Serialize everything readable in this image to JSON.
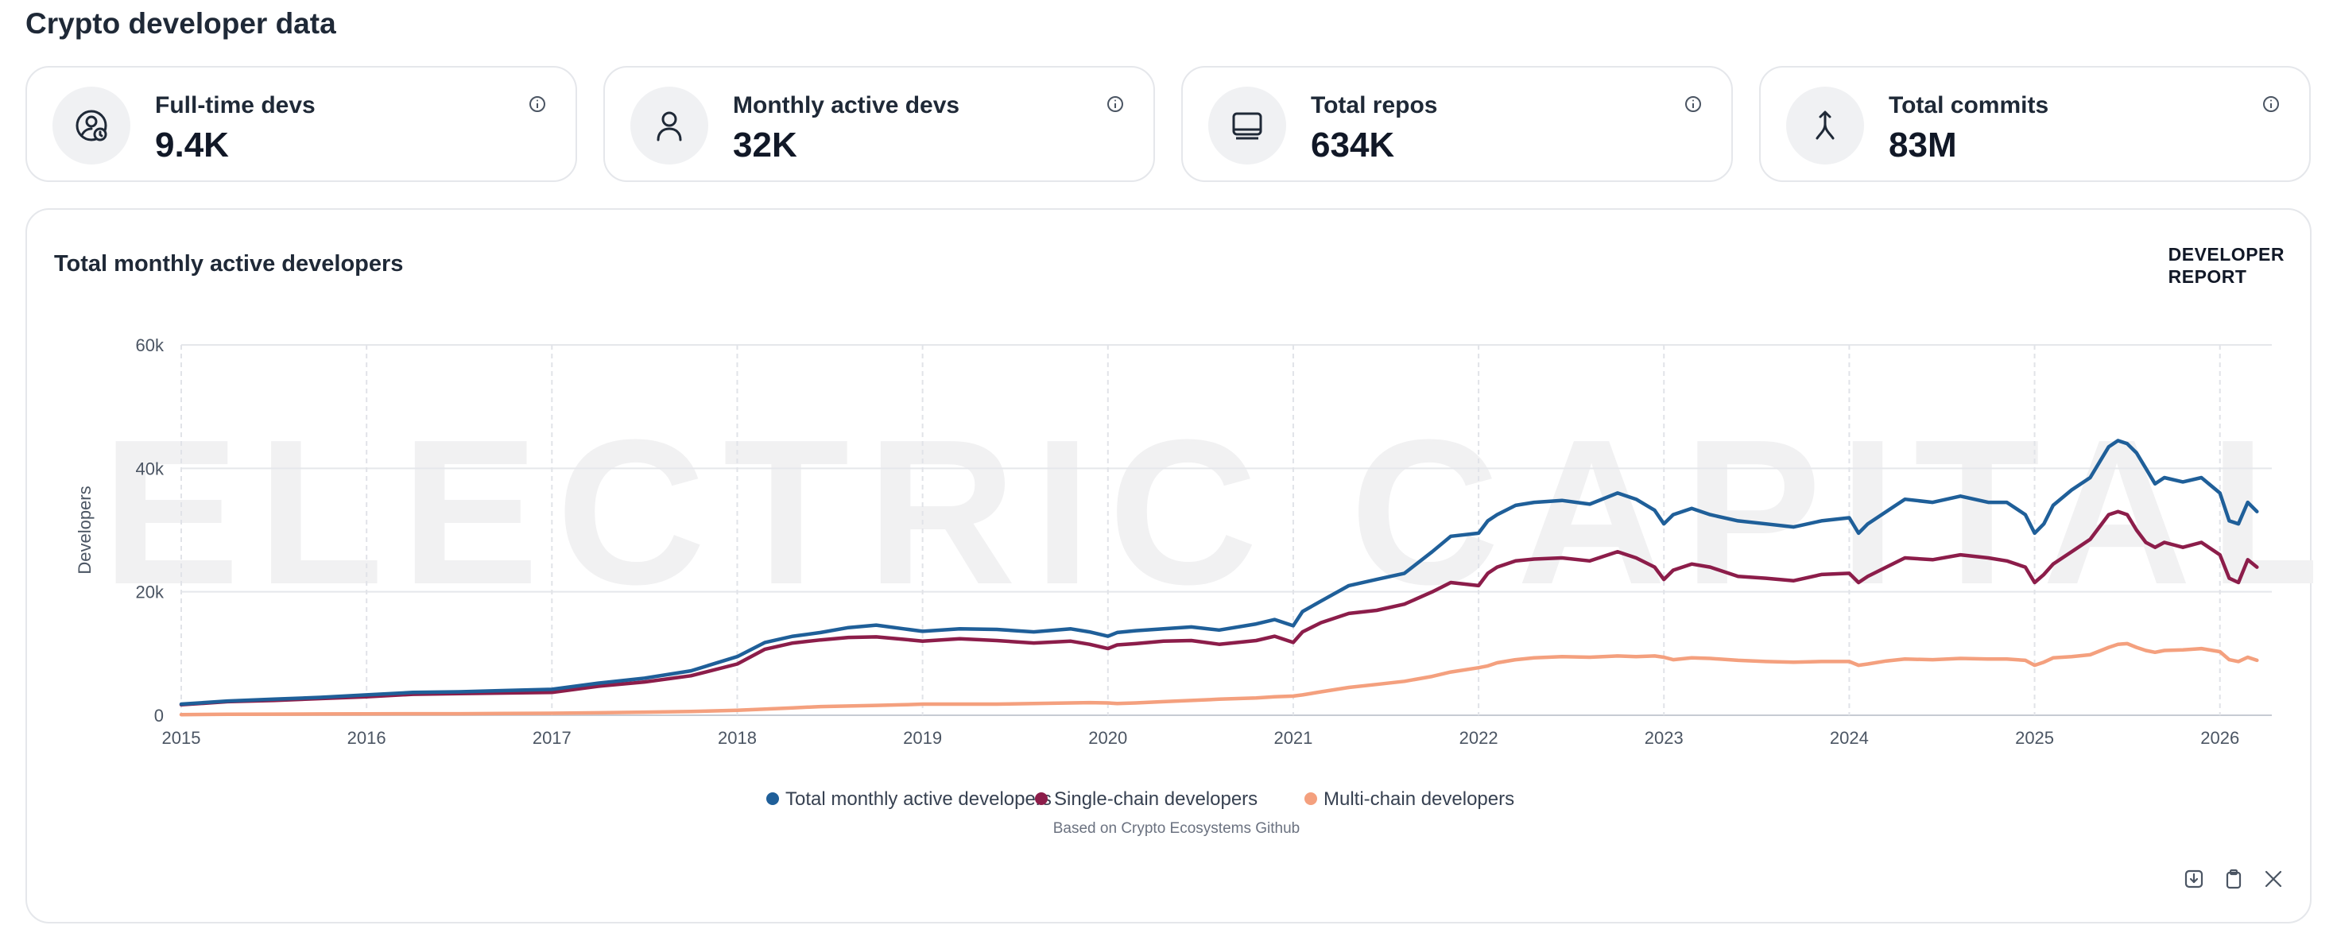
{
  "page": {
    "title": "Crypto developer data"
  },
  "stats": [
    {
      "label": "Full-time devs",
      "value": "9.4K",
      "icon": "user-clock-icon"
    },
    {
      "label": "Monthly active devs",
      "value": "32K",
      "icon": "user-icon"
    },
    {
      "label": "Total repos",
      "value": "634K",
      "icon": "laptop-icon"
    },
    {
      "label": "Total commits",
      "value": "83M",
      "icon": "merge-arrow-icon"
    }
  ],
  "report": {
    "line1": "DEVELOPER",
    "line2": "REPORT"
  },
  "watermark": "ELECTRIC CAPITAL",
  "colors": {
    "total": "#1f5f99",
    "single": "#8c1d4a",
    "multi": "#f4a07e"
  },
  "chart_data": {
    "type": "line",
    "title": "Total monthly active developers",
    "ylabel": "Developers",
    "xlabel": "",
    "xlim": [
      2015.0,
      2026.28
    ],
    "ylim": [
      0,
      60000
    ],
    "y_ticks": [
      0,
      20000,
      40000,
      60000
    ],
    "y_tick_labels": [
      "0",
      "20k",
      "40k",
      "60k"
    ],
    "x_ticks": [
      2015,
      2016,
      2017,
      2018,
      2019,
      2020,
      2021,
      2022,
      2023,
      2024,
      2025,
      2026
    ],
    "grid": true,
    "legend_position": "bottom-center",
    "source_note": "Based on Crypto Ecosystems Github",
    "x": [
      2015.0,
      2015.25,
      2015.5,
      2015.75,
      2016.0,
      2016.25,
      2016.5,
      2016.75,
      2017.0,
      2017.25,
      2017.5,
      2017.75,
      2018.0,
      2018.15,
      2018.3,
      2018.45,
      2018.6,
      2018.75,
      2018.9,
      2019.0,
      2019.2,
      2019.4,
      2019.6,
      2019.8,
      2019.9,
      2020.0,
      2020.05,
      2020.15,
      2020.3,
      2020.45,
      2020.6,
      2020.8,
      2020.9,
      2021.0,
      2021.05,
      2021.15,
      2021.3,
      2021.45,
      2021.6,
      2021.75,
      2021.85,
      2022.0,
      2022.05,
      2022.1,
      2022.2,
      2022.3,
      2022.45,
      2022.6,
      2022.75,
      2022.85,
      2022.95,
      2023.0,
      2023.05,
      2023.15,
      2023.25,
      2023.4,
      2023.55,
      2023.7,
      2023.85,
      2024.0,
      2024.05,
      2024.1,
      2024.2,
      2024.3,
      2024.45,
      2024.6,
      2024.75,
      2024.85,
      2024.95,
      2025.0,
      2025.05,
      2025.1,
      2025.2,
      2025.3,
      2025.4,
      2025.45,
      2025.5,
      2025.55,
      2025.6,
      2025.65,
      2025.7,
      2025.8,
      2025.9,
      2026.0,
      2026.05,
      2026.1,
      2026.15,
      2026.2
    ],
    "series": [
      {
        "name": "Total monthly active developers",
        "values": [
          1800,
          2300,
          2600,
          2900,
          3300,
          3700,
          3800,
          4000,
          4200,
          5200,
          6000,
          7200,
          9500,
          11800,
          12800,
          13400,
          14200,
          14600,
          14000,
          13600,
          14000,
          13900,
          13500,
          14000,
          13500,
          12800,
          13400,
          13700,
          14000,
          14300,
          13800,
          14800,
          15500,
          14500,
          16800,
          18500,
          21000,
          22000,
          23000,
          26500,
          29000,
          29500,
          31500,
          32500,
          34000,
          34500,
          34800,
          34200,
          36000,
          35000,
          33200,
          31000,
          32500,
          33500,
          32500,
          31500,
          31000,
          30500,
          31500,
          32000,
          29500,
          31000,
          33000,
          35000,
          34500,
          35500,
          34500,
          34500,
          32500,
          29500,
          31000,
          34000,
          36500,
          38500,
          43500,
          44500,
          44000,
          42500,
          40000,
          37500,
          38500,
          37800,
          38500,
          36000,
          31500,
          31000,
          34500,
          33000
        ]
      },
      {
        "name": "Single-chain developers",
        "values": [
          1700,
          2200,
          2400,
          2700,
          3000,
          3400,
          3500,
          3600,
          3700,
          4700,
          5400,
          6400,
          8300,
          10700,
          11700,
          12200,
          12600,
          12700,
          12300,
          12000,
          12400,
          12100,
          11700,
          12000,
          11500,
          10800,
          11400,
          11600,
          12000,
          12100,
          11500,
          12100,
          12800,
          11800,
          13500,
          15000,
          16500,
          17000,
          18000,
          20000,
          21500,
          21000,
          23000,
          24000,
          25000,
          25300,
          25500,
          25000,
          26500,
          25500,
          24000,
          22000,
          23500,
          24500,
          24000,
          22500,
          22200,
          21800,
          22800,
          23000,
          21500,
          22500,
          24000,
          25500,
          25200,
          26000,
          25500,
          25000,
          24000,
          21500,
          22800,
          24500,
          26500,
          28500,
          32500,
          33000,
          32500,
          30000,
          28000,
          27200,
          28000,
          27200,
          28000,
          26000,
          22200,
          21500,
          25200,
          24000
        ]
      },
      {
        "name": "Multi-chain developers",
        "values": [
          100,
          150,
          180,
          200,
          220,
          240,
          250,
          280,
          320,
          400,
          500,
          600,
          800,
          1000,
          1200,
          1400,
          1500,
          1600,
          1700,
          1800,
          1800,
          1800,
          1900,
          2000,
          2050,
          2000,
          1900,
          2000,
          2200,
          2400,
          2600,
          2800,
          3000,
          3100,
          3300,
          3800,
          4500,
          5000,
          5500,
          6300,
          7000,
          7700,
          8000,
          8500,
          9000,
          9300,
          9500,
          9400,
          9600,
          9500,
          9600,
          9400,
          9000,
          9300,
          9200,
          8900,
          8700,
          8600,
          8700,
          8700,
          8100,
          8300,
          8800,
          9100,
          9000,
          9200,
          9100,
          9100,
          8900,
          8100,
          8600,
          9300,
          9500,
          9800,
          11000,
          11500,
          11600,
          11000,
          10500,
          10200,
          10500,
          10600,
          10800,
          10300,
          9000,
          8700,
          9400,
          8900
        ]
      }
    ]
  },
  "actions": {
    "download": "download-icon",
    "copy": "clipboard-icon",
    "share": "x-logo-icon"
  }
}
